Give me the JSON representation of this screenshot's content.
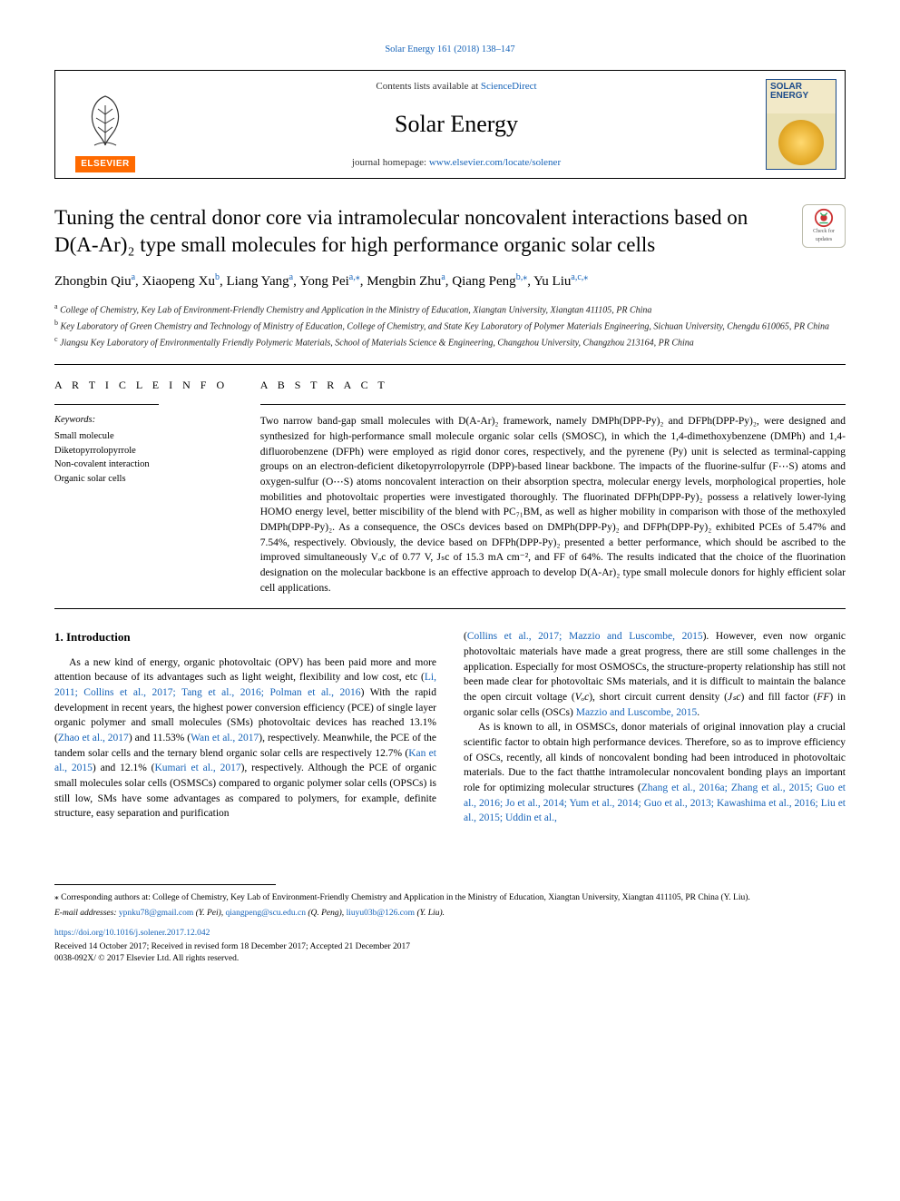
{
  "topCitation": "Solar Energy 161 (2018) 138–147",
  "banner": {
    "contentsPrefix": "Contents lists available at ",
    "contentsLink": "ScienceDirect",
    "journal": "Solar Energy",
    "homepagePrefix": "journal homepage: ",
    "homepageLink": "www.elsevier.com/locate/solener",
    "publisherWord": "ELSEVIER",
    "coverWord1": "SOLAR",
    "coverWord2": "ENERGY",
    "logoColor": "#ff6a00",
    "linkColor": "#1663b8"
  },
  "article": {
    "title": "Tuning the central donor core via intramolecular noncovalent interactions based on D(A-Ar)₂ type small molecules for high performance organic solar cells",
    "checkBadge": {
      "line1": "Check for",
      "line2": "updates"
    },
    "authors": [
      {
        "name": "Zhongbin Qiu",
        "sup": "a"
      },
      {
        "name": "Xiaopeng Xu",
        "sup": "b"
      },
      {
        "name": "Liang Yang",
        "sup": "a"
      },
      {
        "name": "Yong Pei",
        "sup": "a,⁎"
      },
      {
        "name": "Mengbin Zhu",
        "sup": "a"
      },
      {
        "name": "Qiang Peng",
        "sup": "b,⁎"
      },
      {
        "name": "Yu Liu",
        "sup": "a,c,⁎"
      }
    ],
    "affiliations": [
      {
        "sup": "a",
        "text": "College of Chemistry, Key Lab of Environment-Friendly Chemistry and Application in the Ministry of Education, Xiangtan University, Xiangtan 411105, PR China"
      },
      {
        "sup": "b",
        "text": "Key Laboratory of Green Chemistry and Technology of Ministry of Education, College of Chemistry, and State Key Laboratory of Polymer Materials Engineering, Sichuan University, Chengdu 610065, PR China"
      },
      {
        "sup": "c",
        "text": "Jiangsu Key Laboratory of Environmentally Friendly Polymeric Materials, School of Materials Science & Engineering, Changzhou University, Changzhou 213164, PR China"
      }
    ]
  },
  "info": {
    "articleInfoLabel": "A R T I C L E  I N F O",
    "abstractLabel": "A B S T R A C T",
    "keywordsHeading": "Keywords:",
    "keywords": [
      "Small molecule",
      "Diketopyrrolopyrrole",
      "Non-covalent interaction",
      "Organic solar cells"
    ],
    "abstractText": "Two narrow band-gap small molecules with D(A-Ar)₂ framework, namely DMPh(DPP-Py)₂ and DFPh(DPP-Py)₂, were designed and synthesized for high-performance small molecule organic solar cells (SMOSC), in which the 1,4-dimethoxybenzene (DMPh) and 1,4-difluorobenzene (DFPh) were employed as rigid donor cores, respectively, and the pyrenene (Py) unit is selected as terminal-capping groups on an electron-deficient diketopyrrolopyrrole (DPP)-based linear backbone. The impacts of the fluorine-sulfur (F⋯S) atoms and oxygen-sulfur (O⋯S) atoms noncovalent interaction on their absorption spectra, molecular energy levels, morphological properties, hole mobilities and photovoltaic properties were investigated thoroughly. The fluorinated DFPh(DPP-Py)₂ possess a relatively lower-lying HOMO energy level, better miscibility of the blend with PC₇₁BM, as well as higher mobility in comparison with those of the methoxyled DMPh(DPP-Py)₂. As a consequence, the OSCs devices based on DMPh(DPP-Py)₂ and DFPh(DPP-Py)₂ exhibited PCEs of 5.47% and 7.54%, respectively. Obviously, the device based on DFPh(DPP-Py)₂ presented a better performance, which should be ascribed to the improved simultaneously Vₒc of 0.77 V, Jₛc of 15.3 mA cm⁻², and FF of 64%. The results indicated that the choice of the fluorination designation on the molecular backbone is an effective approach to develop D(A-Ar)₂ type small molecule donors for highly efficient solar cell applications."
  },
  "body": {
    "heading": "1. Introduction",
    "col1": {
      "p1a": "As a new kind of energy, organic photovoltaic (OPV) has been paid more and more attention because of its advantages such as light weight, flexibility and low cost, etc (",
      "p1cite1": "Li, 2011; Collins et al., 2017; Tang et al., 2016; Polman et al., 2016",
      "p1b": ") With the rapid development in recent years, the highest power conversion efficiency (PCE) of single layer organic polymer and small molecules (SMs) photovoltaic devices has reached 13.1% (",
      "p1cite2": "Zhao et al., 2017",
      "p1c": ") and 11.53% (",
      "p1cite3": "Wan et al., 2017",
      "p1d": "), respectively. Meanwhile, the PCE of the tandem solar cells and the ternary blend organic solar cells are respectively 12.7% (",
      "p1cite4": "Kan et al., 2015",
      "p1e": ") and 12.1% (",
      "p1cite5": "Kumari et al., 2017",
      "p1f": "), respectively. Although the PCE of organic small molecules solar cells (OSMSCs) compared to organic polymer solar cells (OPSCs) is still low, SMs have some advantages as compared to polymers, for example, definite structure, easy separation and purification"
    },
    "col2": {
      "p1a": "(",
      "p1cite1": "Collins et al., 2017; Mazzio and Luscombe, 2015",
      "p1b": "). However, even now organic photovoltaic materials have made a great progress, there are still some challenges in the application. Especially for most OSMOSCs, the structure-property relationship has still not been made clear for photovoltaic SMs materials, and it is difficult to maintain the balance the open circuit voltage (",
      "p1voc": "Vₒc",
      "p1c": "), short circuit current density (",
      "p1jsc": "Jₛc",
      "p1d": ") and fill factor (",
      "p1ff": "FF",
      "p1e": ") in organic solar cells (OSCs) ",
      "p1cite2": "Mazzio and Luscombe, 2015",
      "p1f": ".",
      "p2a": "As is known to all, in OSMSCs, donor materials of original innovation play a crucial scientific factor to obtain high performance devices. Therefore, so as to improve efficiency of OSCs, recently, all kinds of noncovalent bonding had been introduced in photovoltaic materials. Due to the fact thatthe intramolecular noncovalent bonding plays an important role for optimizing molecular structures (",
      "p2cite1": "Zhang et al., 2016a; Zhang et al., 2015; Guo et al., 2016; Jo et al., 2014; Yum et al., 2014; Guo et al., 2013; Kawashima et al., 2016; Liu et al., 2015; Uddin et al.,"
    }
  },
  "footer": {
    "corresp": "⁎ Corresponding authors at: College of Chemistry, Key Lab of Environment-Friendly Chemistry and Application in the Ministry of Education, Xiangtan University, Xiangtan 411105, PR China (Y. Liu).",
    "emailLabel": "E-mail addresses: ",
    "emails": [
      {
        "addr": "ypnku78@gmail.com",
        "who": " (Y. Pei), "
      },
      {
        "addr": "qiangpeng@scu.edu.cn",
        "who": " (Q. Peng), "
      },
      {
        "addr": "liuyu03b@126.com",
        "who": " (Y. Liu)."
      }
    ],
    "doi": "https://doi.org/10.1016/j.solener.2017.12.042",
    "received": "Received 14 October 2017; Received in revised form 18 December 2017; Accepted 21 December 2017",
    "copyright": "0038-092X/ © 2017 Elsevier Ltd. All rights reserved."
  }
}
